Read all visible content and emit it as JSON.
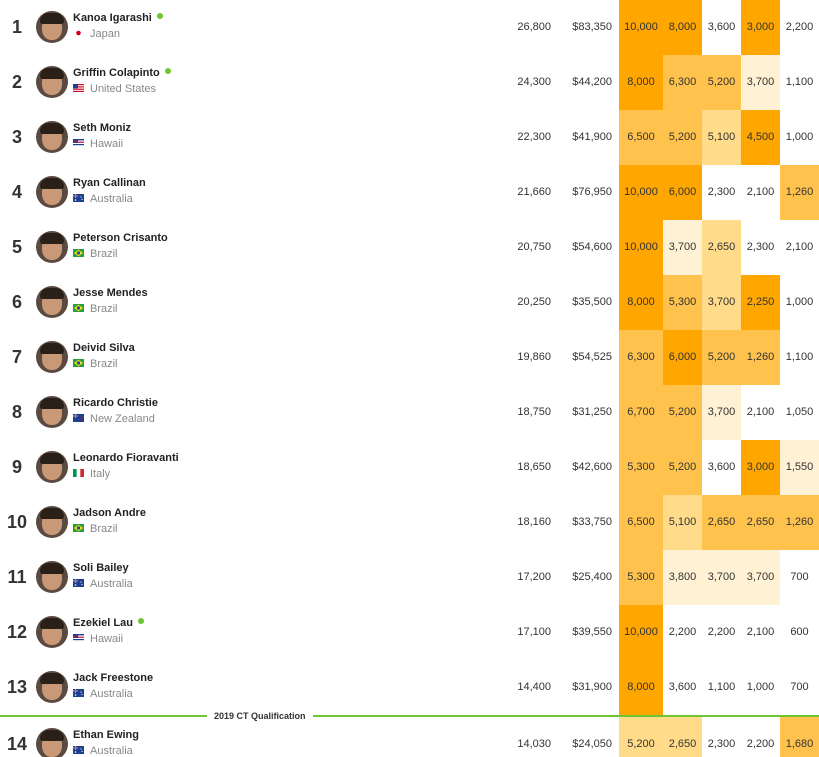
{
  "colors": {
    "h1": "#ffa600",
    "h2": "#ffc24d",
    "h3": "#ffdb8a",
    "h4": "#fff1d4",
    "none": "#ffffff",
    "divider": "#6ec531",
    "online_dot": "#6ec531"
  },
  "qualification_label": "2019 CT Qualification",
  "surfers": [
    {
      "rank": "1",
      "name": "Kanoa Igarashi",
      "online": true,
      "country": "Japan",
      "flag_icon": "japan-flag-icon",
      "points": "26,800",
      "money": "$83,350",
      "results": [
        "10,000",
        "8,000",
        "3,600",
        "3,000",
        "2,200"
      ],
      "heat": [
        "h1",
        "h1",
        "none",
        "h1",
        "none"
      ]
    },
    {
      "rank": "2",
      "name": "Griffin Colapinto",
      "online": true,
      "country": "United States",
      "flag_icon": "usa-flag-icon",
      "points": "24,300",
      "money": "$44,200",
      "results": [
        "8,000",
        "6,300",
        "5,200",
        "3,700",
        "1,100"
      ],
      "heat": [
        "h1",
        "h2",
        "h2",
        "h4",
        "none"
      ]
    },
    {
      "rank": "3",
      "name": "Seth Moniz",
      "online": false,
      "country": "Hawaii",
      "flag_icon": "hawaii-flag-icon",
      "points": "22,300",
      "money": "$41,900",
      "results": [
        "6,500",
        "5,200",
        "5,100",
        "4,500",
        "1,000"
      ],
      "heat": [
        "h2",
        "h2",
        "h3",
        "h1",
        "none"
      ]
    },
    {
      "rank": "4",
      "name": "Ryan Callinan",
      "online": false,
      "country": "Australia",
      "flag_icon": "australia-flag-icon",
      "points": "21,660",
      "money": "$76,950",
      "results": [
        "10,000",
        "6,000",
        "2,300",
        "2,100",
        "1,260"
      ],
      "heat": [
        "h1",
        "h1",
        "none",
        "none",
        "h2"
      ]
    },
    {
      "rank": "5",
      "name": "Peterson Crisanto",
      "online": false,
      "country": "Brazil",
      "flag_icon": "brazil-flag-icon",
      "points": "20,750",
      "money": "$54,600",
      "results": [
        "10,000",
        "3,700",
        "2,650",
        "2,300",
        "2,100"
      ],
      "heat": [
        "h1",
        "h4",
        "h3",
        "none",
        "none"
      ]
    },
    {
      "rank": "6",
      "name": "Jesse Mendes",
      "online": false,
      "country": "Brazil",
      "flag_icon": "brazil-flag-icon",
      "points": "20,250",
      "money": "$35,500",
      "results": [
        "8,000",
        "5,300",
        "3,700",
        "2,250",
        "1,000"
      ],
      "heat": [
        "h1",
        "h2",
        "h3",
        "h1",
        "none"
      ]
    },
    {
      "rank": "7",
      "name": "Deivid Silva",
      "online": false,
      "country": "Brazil",
      "flag_icon": "brazil-flag-icon",
      "points": "19,860",
      "money": "$54,525",
      "results": [
        "6,300",
        "6,000",
        "5,200",
        "1,260",
        "1,100"
      ],
      "heat": [
        "h2",
        "h1",
        "h2",
        "h2",
        "none"
      ]
    },
    {
      "rank": "8",
      "name": "Ricardo Christie",
      "online": false,
      "country": "New Zealand",
      "flag_icon": "new-zealand-flag-icon",
      "points": "18,750",
      "money": "$31,250",
      "results": [
        "6,700",
        "5,200",
        "3,700",
        "2,100",
        "1,050"
      ],
      "heat": [
        "h2",
        "h2",
        "h4",
        "none",
        "none"
      ]
    },
    {
      "rank": "9",
      "name": "Leonardo Fioravanti",
      "online": false,
      "country": "Italy",
      "flag_icon": "italy-flag-icon",
      "points": "18,650",
      "money": "$42,600",
      "results": [
        "5,300",
        "5,200",
        "3,600",
        "3,000",
        "1,550"
      ],
      "heat": [
        "h2",
        "h2",
        "none",
        "h1",
        "h4"
      ]
    },
    {
      "rank": "10",
      "name": "Jadson Andre",
      "online": false,
      "country": "Brazil",
      "flag_icon": "brazil-flag-icon",
      "points": "18,160",
      "money": "$33,750",
      "results": [
        "6,500",
        "5,100",
        "2,650",
        "2,650",
        "1,260"
      ],
      "heat": [
        "h2",
        "h3",
        "h2",
        "h2",
        "h2"
      ]
    },
    {
      "rank": "11",
      "name": "Soli Bailey",
      "online": false,
      "country": "Australia",
      "flag_icon": "australia-flag-icon",
      "points": "17,200",
      "money": "$25,400",
      "results": [
        "5,300",
        "3,800",
        "3,700",
        "3,700",
        "700"
      ],
      "heat": [
        "h2",
        "h4",
        "h4",
        "h4",
        "none"
      ]
    },
    {
      "rank": "12",
      "name": "Ezekiel Lau",
      "online": true,
      "country": "Hawaii",
      "flag_icon": "hawaii-flag-icon",
      "points": "17,100",
      "money": "$39,550",
      "results": [
        "10,000",
        "2,200",
        "2,200",
        "2,100",
        "600"
      ],
      "heat": [
        "h1",
        "none",
        "none",
        "none",
        "none"
      ]
    },
    {
      "rank": "13",
      "name": "Jack Freestone",
      "online": false,
      "country": "Australia",
      "flag_icon": "australia-flag-icon",
      "points": "14,400",
      "money": "$31,900",
      "results": [
        "8,000",
        "3,600",
        "1,100",
        "1,000",
        "700"
      ],
      "heat": [
        "h1",
        "none",
        "none",
        "none",
        "none"
      ]
    },
    {
      "rank": "14",
      "name": "Ethan Ewing",
      "online": false,
      "country": "Australia",
      "flag_icon": "australia-flag-icon",
      "points": "14,030",
      "money": "$24,050",
      "results": [
        "5,200",
        "2,650",
        "2,300",
        "2,200",
        "1,680"
      ],
      "heat": [
        "h3",
        "h3",
        "none",
        "none",
        "h2"
      ]
    }
  ]
}
